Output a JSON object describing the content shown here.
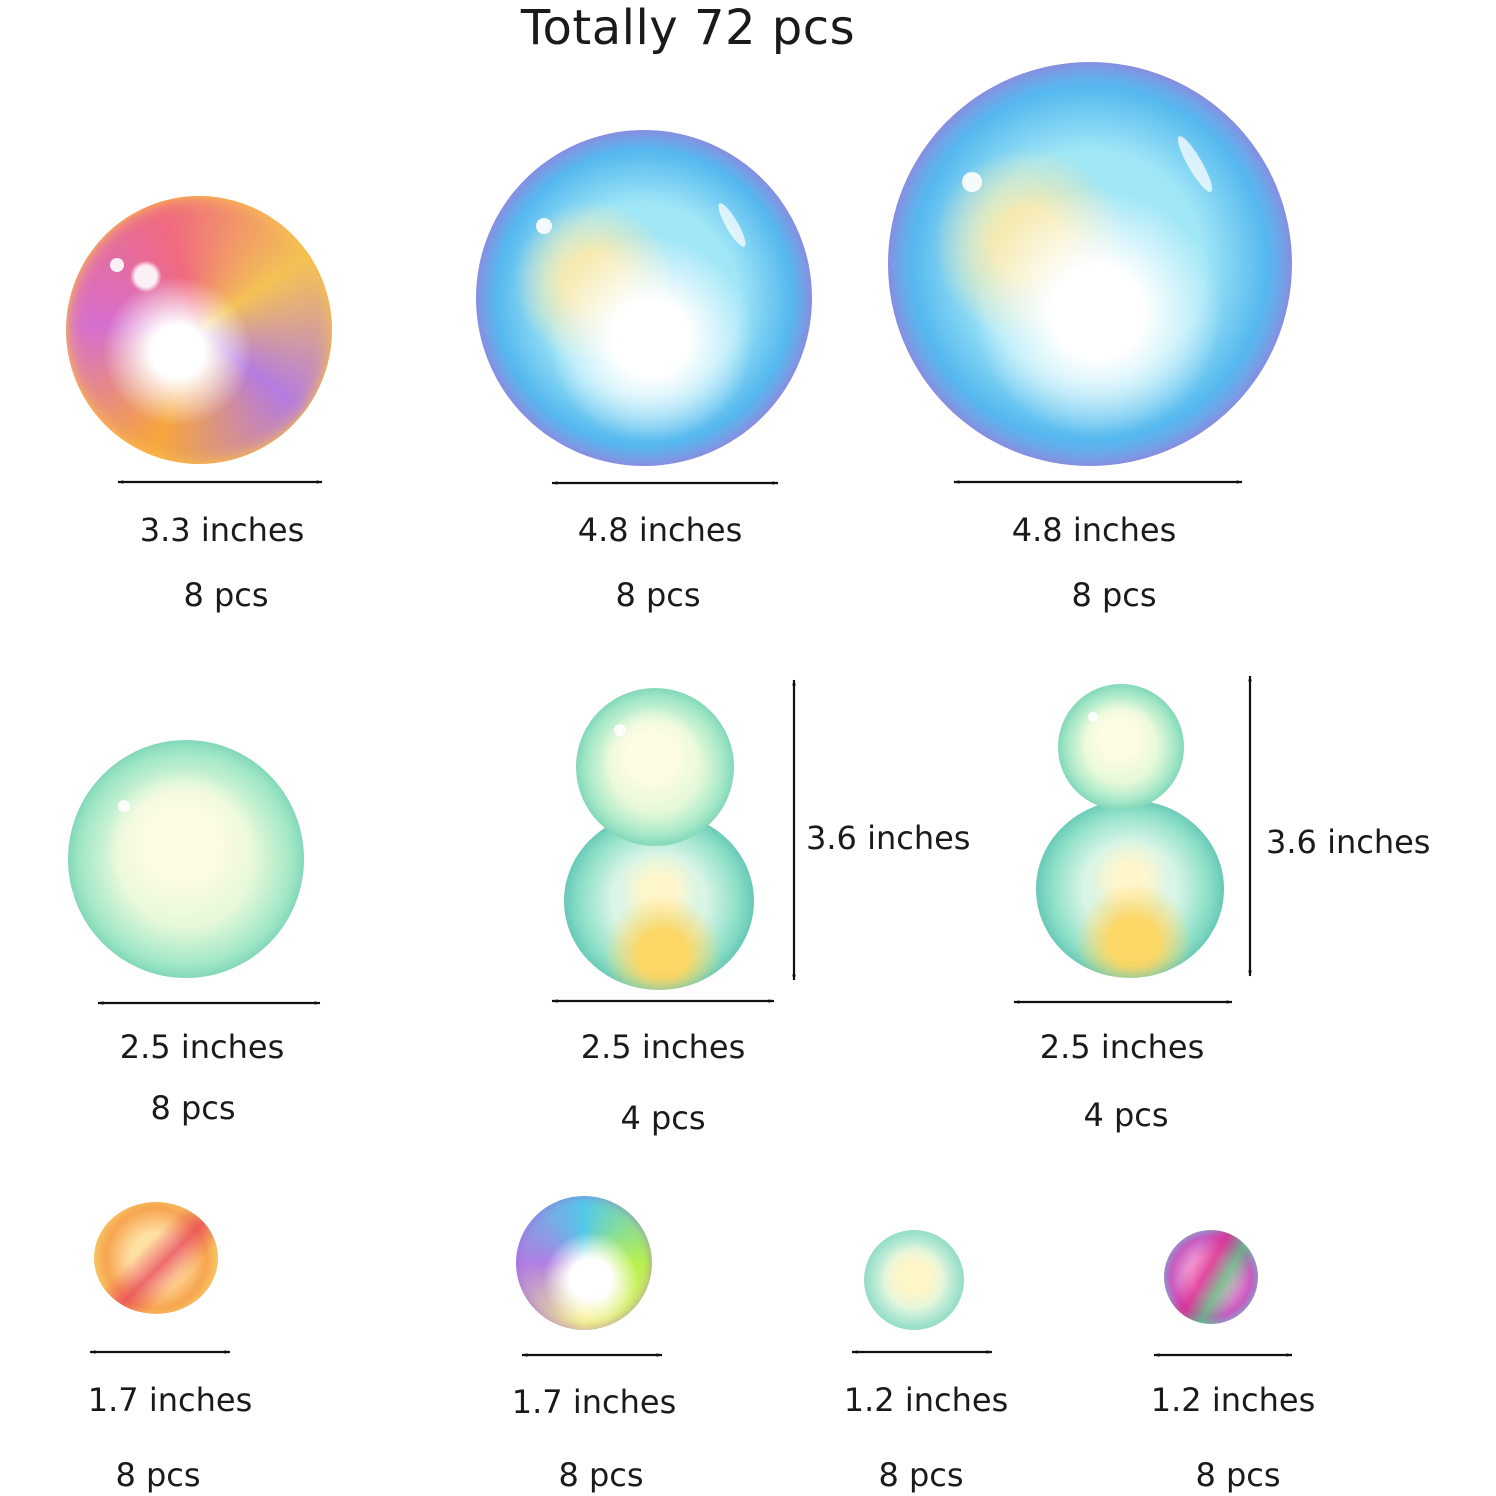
{
  "title": "Totally 72 pcs",
  "items": [
    {
      "size": "3.3 inches",
      "count": "8 pcs"
    },
    {
      "size": "4.8 inches",
      "count": "8 pcs"
    },
    {
      "size": "4.8 inches",
      "count": "8 pcs"
    },
    {
      "size": "2.5 inches",
      "count": "8 pcs"
    },
    {
      "size": "2.5 inches",
      "height": "3.6 inches",
      "count": "4 pcs"
    },
    {
      "size": "2.5 inches",
      "height": "3.6 inches",
      "count": "4 pcs"
    },
    {
      "size": "1.7 inches",
      "count": "8 pcs"
    },
    {
      "size": "1.7 inches",
      "count": "8 pcs"
    },
    {
      "size": "1.2 inches",
      "count": "8 pcs"
    },
    {
      "size": "1.2 inches",
      "count": "8 pcs"
    }
  ]
}
